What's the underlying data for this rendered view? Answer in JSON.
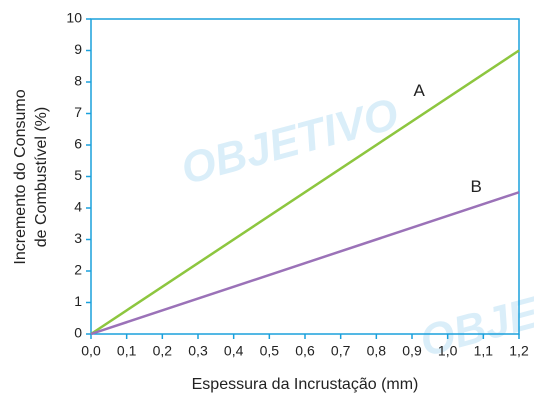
{
  "chart_data": {
    "type": "line",
    "watermark": "OBJETIVO",
    "x_label": "Espessura da Incrustação (mm)",
    "y_label": [
      "Incremento do Consumo",
      "de Combustível (%)"
    ],
    "x": [
      0,
      1.2
    ],
    "series": [
      {
        "name": "A",
        "color": "#8dc63f",
        "values": [
          0,
          9
        ]
      },
      {
        "name": "B",
        "color": "#9b72b8",
        "values": [
          0,
          4.5
        ]
      }
    ],
    "xlim": [
      0,
      1.2
    ],
    "ylim": [
      0,
      10
    ],
    "xticks": [
      {
        "value": 0,
        "label": "0,0"
      },
      {
        "value": 0.1,
        "label": "0,1"
      },
      {
        "value": 0.2,
        "label": "0,2"
      },
      {
        "value": 0.3,
        "label": "0,3"
      },
      {
        "value": 0.4,
        "label": "0,4"
      },
      {
        "value": 0.5,
        "label": "0,5"
      },
      {
        "value": 0.6,
        "label": "0,6"
      },
      {
        "value": 0.7,
        "label": "0,7"
      },
      {
        "value": 0.8,
        "label": "0,8"
      },
      {
        "value": 0.9,
        "label": "0,9"
      },
      {
        "value": 1.0,
        "label": "1,0"
      },
      {
        "value": 1.1,
        "label": "1,1"
      },
      {
        "value": 1.2,
        "label": "1,2"
      }
    ],
    "yticks": [
      0,
      1,
      2,
      3,
      4,
      5,
      6,
      7,
      8,
      9,
      10
    ],
    "axis_color": "#1aa0dc"
  }
}
